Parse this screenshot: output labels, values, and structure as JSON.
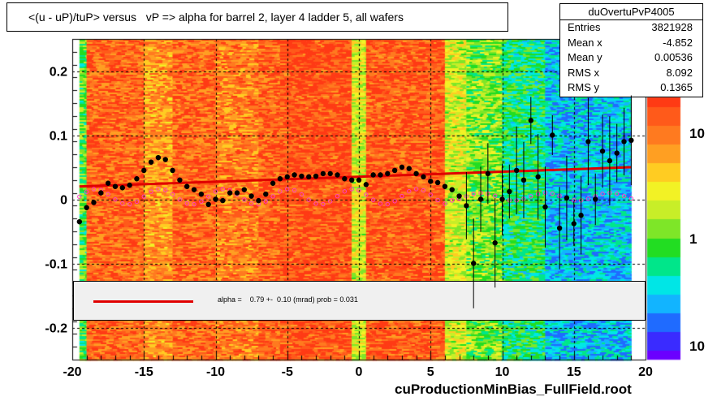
{
  "title": "<(u - uP)/tuP> versus   vP => alpha for barrel 2, layer 4 ladder 5, all wafers",
  "stats": {
    "name": "duOvertuPvP4005",
    "rows": [
      {
        "k": "Entries",
        "v": "3821928"
      },
      {
        "k": "Mean x",
        "v": "-4.852"
      },
      {
        "k": "Mean y",
        "v": "0.00536"
      },
      {
        "k": "RMS x",
        "v": "8.092"
      },
      {
        "k": "RMS y",
        "v": "0.1365"
      }
    ]
  },
  "fit_text": "alpha =    0.79 +-  0.10 (mrad) prob = 0.031",
  "footer": "cuProductionMinBias_FullField.root",
  "colors": {
    "fit_line": "#e00000",
    "profile_points": "#000000",
    "secondary_points": "#ff40c0"
  },
  "chart_data": {
    "type": "heatmap",
    "title": "<(u - uP)/tuP> versus   vP => alpha for barrel 2, layer 4 ladder 5, all wafers",
    "xlabel": "",
    "ylabel": "",
    "xlim": [
      -20,
      20
    ],
    "ylim": [
      -0.25,
      0.25
    ],
    "x_ticks": [
      "-20",
      "-15",
      "-10",
      "-5",
      "0",
      "5",
      "10",
      "15",
      "20"
    ],
    "y_ticks": [
      "-0.2",
      "-0.1",
      "0",
      "0.1",
      "0.2"
    ],
    "grid": true,
    "colorbar": {
      "scale": "log",
      "tick_labels": [
        "10",
        "1",
        "10"
      ],
      "range": [
        0.07,
        40
      ]
    },
    "column_density": [
      {
        "x_from": -19.5,
        "x_to": -19.0,
        "level": 0.45
      },
      {
        "x_from": -19.0,
        "x_to": -15.0,
        "level": 0.9
      },
      {
        "x_from": -15.0,
        "x_to": -13.0,
        "level": 0.8
      },
      {
        "x_from": -13.0,
        "x_to": -10.0,
        "level": 0.9
      },
      {
        "x_from": -10.0,
        "x_to": -7.0,
        "level": 0.85
      },
      {
        "x_from": -7.0,
        "x_to": -5.5,
        "level": 0.92
      },
      {
        "x_from": -5.5,
        "x_to": -0.5,
        "level": 0.95
      },
      {
        "x_from": -0.5,
        "x_to": 0.5,
        "level": 0.6
      },
      {
        "x_from": 0.5,
        "x_to": 6.0,
        "level": 0.93
      },
      {
        "x_from": 6.0,
        "x_to": 7.5,
        "level": 0.6
      },
      {
        "x_from": 7.5,
        "x_to": 10.0,
        "level": 0.5
      },
      {
        "x_from": 10.0,
        "x_to": 13.0,
        "level": 0.38
      },
      {
        "x_from": 13.0,
        "x_to": 19.0,
        "level": 0.25
      }
    ],
    "series": [
      {
        "name": "profile",
        "x": [
          -19.5,
          -19.0,
          -18.5,
          -18.0,
          -17.5,
          -17.0,
          -16.5,
          -16.0,
          -15.5,
          -15.0,
          -14.5,
          -14.0,
          -13.5,
          -13.0,
          -12.5,
          -12.0,
          -11.5,
          -11.0,
          -10.5,
          -10.0,
          -9.5,
          -9.0,
          -8.5,
          -8.0,
          -7.5,
          -7.0,
          -6.5,
          -6.0,
          -5.5,
          -5.0,
          -4.5,
          -4.0,
          -3.5,
          -3.0,
          -2.5,
          -2.0,
          -1.5,
          -1.0,
          -0.5,
          0.0,
          0.5,
          1.0,
          1.5,
          2.0,
          2.5,
          3.0,
          3.5,
          4.0,
          4.5,
          5.0,
          5.5,
          6.0,
          6.5,
          7.0,
          7.5,
          8.0,
          8.5,
          9.0,
          9.5,
          10.0,
          10.5,
          11.0,
          11.5,
          12.0,
          12.5,
          13.0,
          13.5,
          14.0,
          14.5,
          15.0,
          15.5,
          16.0,
          16.5,
          17.0,
          17.5,
          18.0,
          18.5,
          19.0
        ],
        "y": [
          -0.035,
          -0.013,
          -0.005,
          0.01,
          0.025,
          0.02,
          0.018,
          0.022,
          0.032,
          0.045,
          0.058,
          0.065,
          0.062,
          0.045,
          0.03,
          0.02,
          0.015,
          0.008,
          -0.008,
          0.0,
          -0.002,
          0.01,
          0.01,
          0.015,
          0.005,
          -0.002,
          0.008,
          0.025,
          0.032,
          0.035,
          0.038,
          0.036,
          0.035,
          0.036,
          0.04,
          0.04,
          0.038,
          0.032,
          0.03,
          0.03,
          0.023,
          0.038,
          0.038,
          0.04,
          0.045,
          0.05,
          0.048,
          0.04,
          0.035,
          0.028,
          0.026,
          0.02,
          0.015,
          0.005,
          -0.01,
          -0.1,
          0.0,
          0.04,
          -0.068,
          0.0,
          0.012,
          0.045,
          0.03,
          0.123,
          0.035,
          -0.012,
          0.1,
          -0.045,
          0.002,
          -0.038,
          -0.025,
          0.09,
          0.0,
          0.075,
          0.06,
          0.072,
          0.09,
          0.092
        ]
      },
      {
        "name": "fit",
        "x": [
          -19.5,
          19.0
        ],
        "y": [
          0.02,
          0.05
        ]
      }
    ]
  }
}
